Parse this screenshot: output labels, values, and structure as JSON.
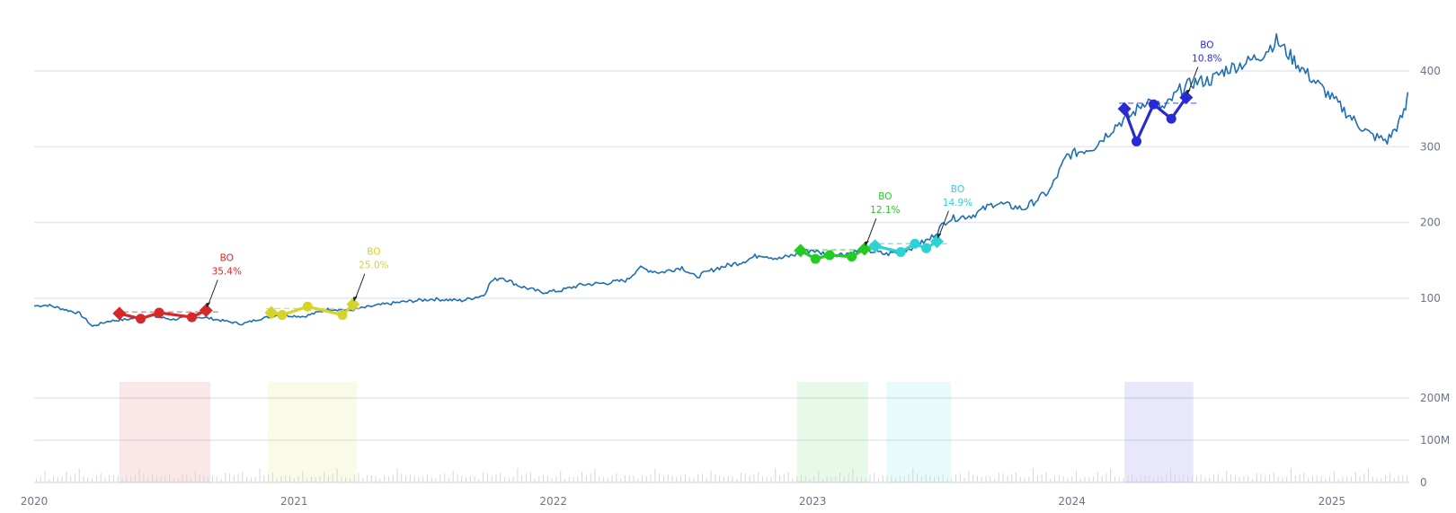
{
  "colors": {
    "price_line": "#1f6fb2",
    "grid": "#e4e8f1",
    "axis_text": "#6b7489",
    "volume_bar": "#d6d6d6"
  },
  "chart_data": [
    {
      "type": "line",
      "panel": "price",
      "series": [
        {
          "values": [
            [
              "2020-01-01",
              90
            ],
            [
              "2020-01-20",
              91
            ],
            [
              "2020-02-10",
              86
            ],
            [
              "2020-03-05",
              80
            ],
            [
              "2020-03-23",
              63
            ],
            [
              "2020-04-15",
              70
            ],
            [
              "2020-05-10",
              72
            ],
            [
              "2020-06-10",
              77
            ],
            [
              "2020-07-15",
              72
            ],
            [
              "2020-08-10",
              76
            ],
            [
              "2020-09-01",
              74
            ],
            [
              "2020-09-25",
              70
            ],
            [
              "2020-10-20",
              66
            ],
            [
              "2020-11-10",
              72
            ],
            [
              "2020-12-10",
              78
            ],
            [
              "2021-01-15",
              76
            ],
            [
              "2021-02-20",
              86
            ],
            [
              "2021-03-20",
              84
            ],
            [
              "2021-04-30",
              91
            ],
            [
              "2021-06-01",
              95
            ],
            [
              "2021-07-15",
              99
            ],
            [
              "2021-08-25",
              97
            ],
            [
              "2021-09-25",
              104
            ],
            [
              "2021-10-05",
              122
            ],
            [
              "2021-10-20",
              128
            ],
            [
              "2021-11-15",
              116
            ],
            [
              "2021-12-15",
              108
            ],
            [
              "2022-01-10",
              110
            ],
            [
              "2022-02-10",
              118
            ],
            [
              "2022-03-15",
              120
            ],
            [
              "2022-04-15",
              124
            ],
            [
              "2022-05-01",
              140
            ],
            [
              "2022-06-01",
              134
            ],
            [
              "2022-07-01",
              141
            ],
            [
              "2022-07-20",
              128
            ],
            [
              "2022-08-20",
              140
            ],
            [
              "2022-09-20",
              147
            ],
            [
              "2022-10-20",
              158
            ],
            [
              "2022-11-15",
              152
            ],
            [
              "2023-01-01",
              164
            ],
            [
              "2023-01-10",
              160
            ],
            [
              "2023-02-10",
              158
            ],
            [
              "2023-03-15",
              164
            ],
            [
              "2023-04-15",
              158
            ],
            [
              "2023-05-15",
              165
            ],
            [
              "2023-06-15",
              178
            ],
            [
              "2023-07-10",
              204
            ],
            [
              "2023-08-15",
              210
            ],
            [
              "2023-09-15",
              226
            ],
            [
              "2023-10-25",
              218
            ],
            [
              "2023-12-01",
              242
            ],
            [
              "2023-12-25",
              288
            ],
            [
              "2024-02-01",
              300
            ],
            [
              "2024-03-05",
              330
            ],
            [
              "2024-03-25",
              342
            ],
            [
              "2024-04-15",
              362
            ],
            [
              "2024-05-10",
              350
            ],
            [
              "2024-06-01",
              375
            ],
            [
              "2024-06-20",
              385
            ],
            [
              "2024-07-15",
              388
            ],
            [
              "2024-08-05",
              402
            ],
            [
              "2024-09-05",
              412
            ],
            [
              "2024-09-25",
              422
            ],
            [
              "2024-10-15",
              440
            ],
            [
              "2024-11-01",
              422
            ],
            [
              "2024-11-25",
              398
            ],
            [
              "2024-12-15",
              380
            ],
            [
              "2025-01-10",
              356
            ],
            [
              "2025-02-01",
              335
            ],
            [
              "2025-02-25",
              315
            ],
            [
              "2025-03-20",
              308
            ],
            [
              "2025-04-05",
              330
            ],
            [
              "2025-04-15",
              350
            ],
            [
              "2025-04-18",
              372
            ]
          ]
        }
      ],
      "y_axis_side": "right",
      "y_ticks": [
        "100",
        "200",
        "300",
        "400"
      ],
      "x_ticks": [
        "2020",
        "2021",
        "2022",
        "2023",
        "2024",
        "2025"
      ],
      "grid": true,
      "patterns": [
        {
          "color": "#d62828",
          "points": [
            [
              "2020-04-30",
              80
            ],
            [
              "2020-05-30",
              73
            ],
            [
              "2020-06-25",
              81
            ],
            [
              "2020-08-10",
              75
            ],
            [
              "2020-08-30",
              84
            ]
          ],
          "label_line1": "BO",
          "label_line2": "35.4%"
        },
        {
          "color": "#d4d42a",
          "points": [
            [
              "2020-11-30",
              81
            ],
            [
              "2020-12-15",
              78
            ],
            [
              "2021-01-20",
              89
            ],
            [
              "2021-03-10",
              78
            ],
            [
              "2021-03-25",
              92
            ]
          ],
          "label_line1": "BO",
          "label_line2": "25.0%"
        },
        {
          "color": "#22cc22",
          "points": [
            [
              "2022-12-15",
              163
            ],
            [
              "2023-01-05",
              152
            ],
            [
              "2023-01-25",
              157
            ],
            [
              "2023-02-25",
              155
            ],
            [
              "2023-03-15",
              165
            ]
          ],
          "label_line1": "BO",
          "label_line2": "12.1%"
        },
        {
          "color": "#2ad4d4",
          "points": [
            [
              "2023-03-30",
              169
            ],
            [
              "2023-05-05",
              161
            ],
            [
              "2023-05-25",
              172
            ],
            [
              "2023-06-10",
              166
            ],
            [
              "2023-06-25",
              175
            ]
          ],
          "label_line1": "BO",
          "label_line2": "14.9%"
        },
        {
          "color": "#2a2ad4",
          "points": [
            [
              "2024-03-15",
              350
            ],
            [
              "2024-04-01",
              307
            ],
            [
              "2024-04-25",
              356
            ],
            [
              "2024-05-20",
              337
            ],
            [
              "2024-06-10",
              365
            ]
          ],
          "label_line1": "BO",
          "label_line2": "10.8%"
        }
      ]
    },
    {
      "type": "bar",
      "panel": "volume",
      "y_ticks": [
        "0",
        "100M",
        "200M"
      ],
      "volume_samples_millions": [
        18,
        14,
        22,
        30,
        45,
        26,
        20,
        16,
        24,
        19,
        60,
        28,
        17,
        22,
        35,
        26,
        19,
        15,
        21,
        28,
        17,
        14,
        25,
        19,
        16,
        30,
        22,
        18,
        14,
        20,
        26,
        17,
        15,
        23,
        19,
        16,
        28,
        21,
        18,
        15,
        24,
        30,
        22,
        19,
        16,
        27,
        20,
        17,
        35,
        25,
        21,
        18,
        16,
        22,
        19,
        26,
        18,
        15,
        20,
        17
      ],
      "highlight_windows": [
        {
          "start": "2020-04-30",
          "end": "2020-09-05",
          "color": "#d62828"
        },
        {
          "start": "2020-11-25",
          "end": "2021-03-30",
          "color": "#d4d42a"
        },
        {
          "start": "2022-12-10",
          "end": "2023-03-20",
          "color": "#22cc22"
        },
        {
          "start": "2023-04-15",
          "end": "2023-07-15",
          "color": "#2ad4d4"
        },
        {
          "start": "2024-03-15",
          "end": "2024-06-20",
          "color": "#2a2ad4"
        }
      ]
    }
  ]
}
